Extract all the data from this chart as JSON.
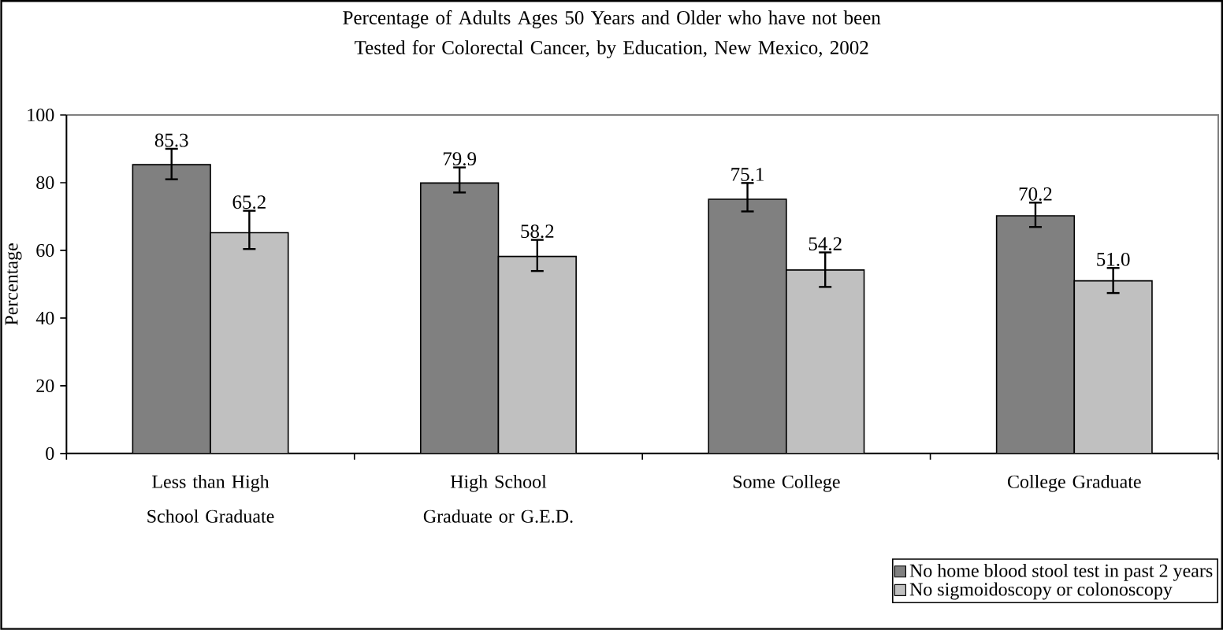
{
  "chart_data": {
    "type": "bar",
    "title": "Percentage of Adults Ages 50 Years and Older who have not been Tested for Colorectal Cancer, by Education, New Mexico, 2002",
    "ylabel": "Percentage",
    "categories": [
      "Less than High School Graduate",
      "High School Graduate or G.E.D.",
      "Some College",
      "College Graduate"
    ],
    "series": [
      {
        "name": "No home blood stool test in past 2 years",
        "color": "#808080",
        "values": [
          85.3,
          79.9,
          75.1,
          70.2
        ],
        "value_labels": [
          "85.3",
          "79.9",
          "75.1",
          "70.2"
        ],
        "errors": [
          [
            81.0,
            90.0
          ],
          [
            77.1,
            84.5
          ],
          [
            71.5,
            79.9
          ],
          [
            66.9,
            74.1
          ]
        ]
      },
      {
        "name": "No sigmoidoscopy or colonoscopy",
        "color": "#c0c0c0",
        "values": [
          65.2,
          58.2,
          54.2,
          51.0
        ],
        "value_labels": [
          "65.2",
          "58.2",
          "54.2",
          "51.0"
        ],
        "errors": [
          [
            60.4,
            71.7
          ],
          [
            53.9,
            63.1
          ],
          [
            49.2,
            59.4
          ],
          [
            47.4,
            54.8
          ]
        ]
      }
    ],
    "ylim": [
      0,
      100
    ],
    "yticks": [
      0,
      20,
      40,
      60,
      80,
      100
    ],
    "legend": "bottom right",
    "grid": false
  }
}
